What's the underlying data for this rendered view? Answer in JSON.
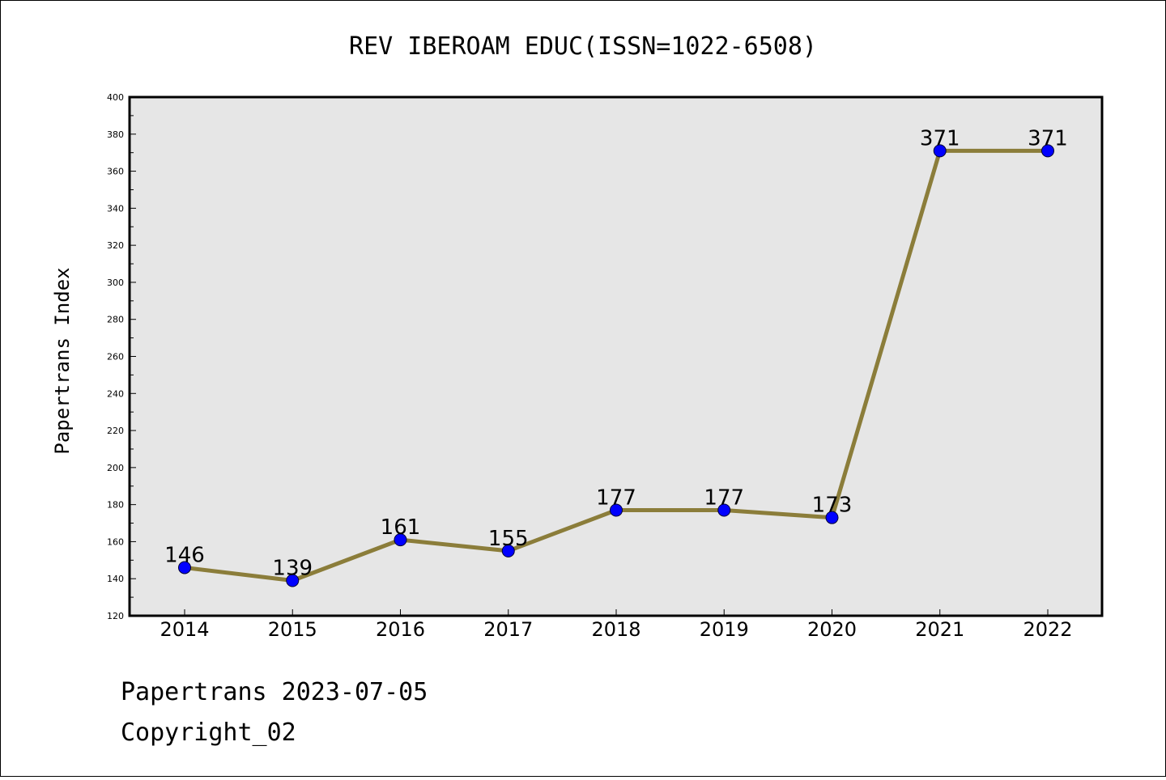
{
  "chart_data": {
    "type": "line",
    "title": "REV IBEROAM EDUC(ISSN=1022-6508)",
    "xlabel": "",
    "ylabel": "Papertrans Index",
    "categories": [
      "2014",
      "2015",
      "2016",
      "2017",
      "2018",
      "2019",
      "2020",
      "2021",
      "2022"
    ],
    "series": [
      {
        "values": [
          146,
          139,
          161,
          155,
          177,
          177,
          173,
          371,
          371
        ]
      }
    ],
    "data_labels": [
      "146",
      "139",
      "161",
      "155",
      "177",
      "177",
      "173",
      "371",
      "371"
    ],
    "ylim": [
      120,
      400
    ],
    "yticks": [
      "120",
      "140",
      "160",
      "180",
      "200",
      "220",
      "240",
      "260",
      "280",
      "300",
      "320",
      "340",
      "360",
      "380",
      "400"
    ],
    "grid": false,
    "legend": "none",
    "colors": {
      "line": "#8B7D3A",
      "marker": "#0000FF",
      "plot_background": "#E6E6E6"
    }
  },
  "footer": {
    "line1": "Papertrans 2023-07-05",
    "line2": "Copyright_02"
  }
}
